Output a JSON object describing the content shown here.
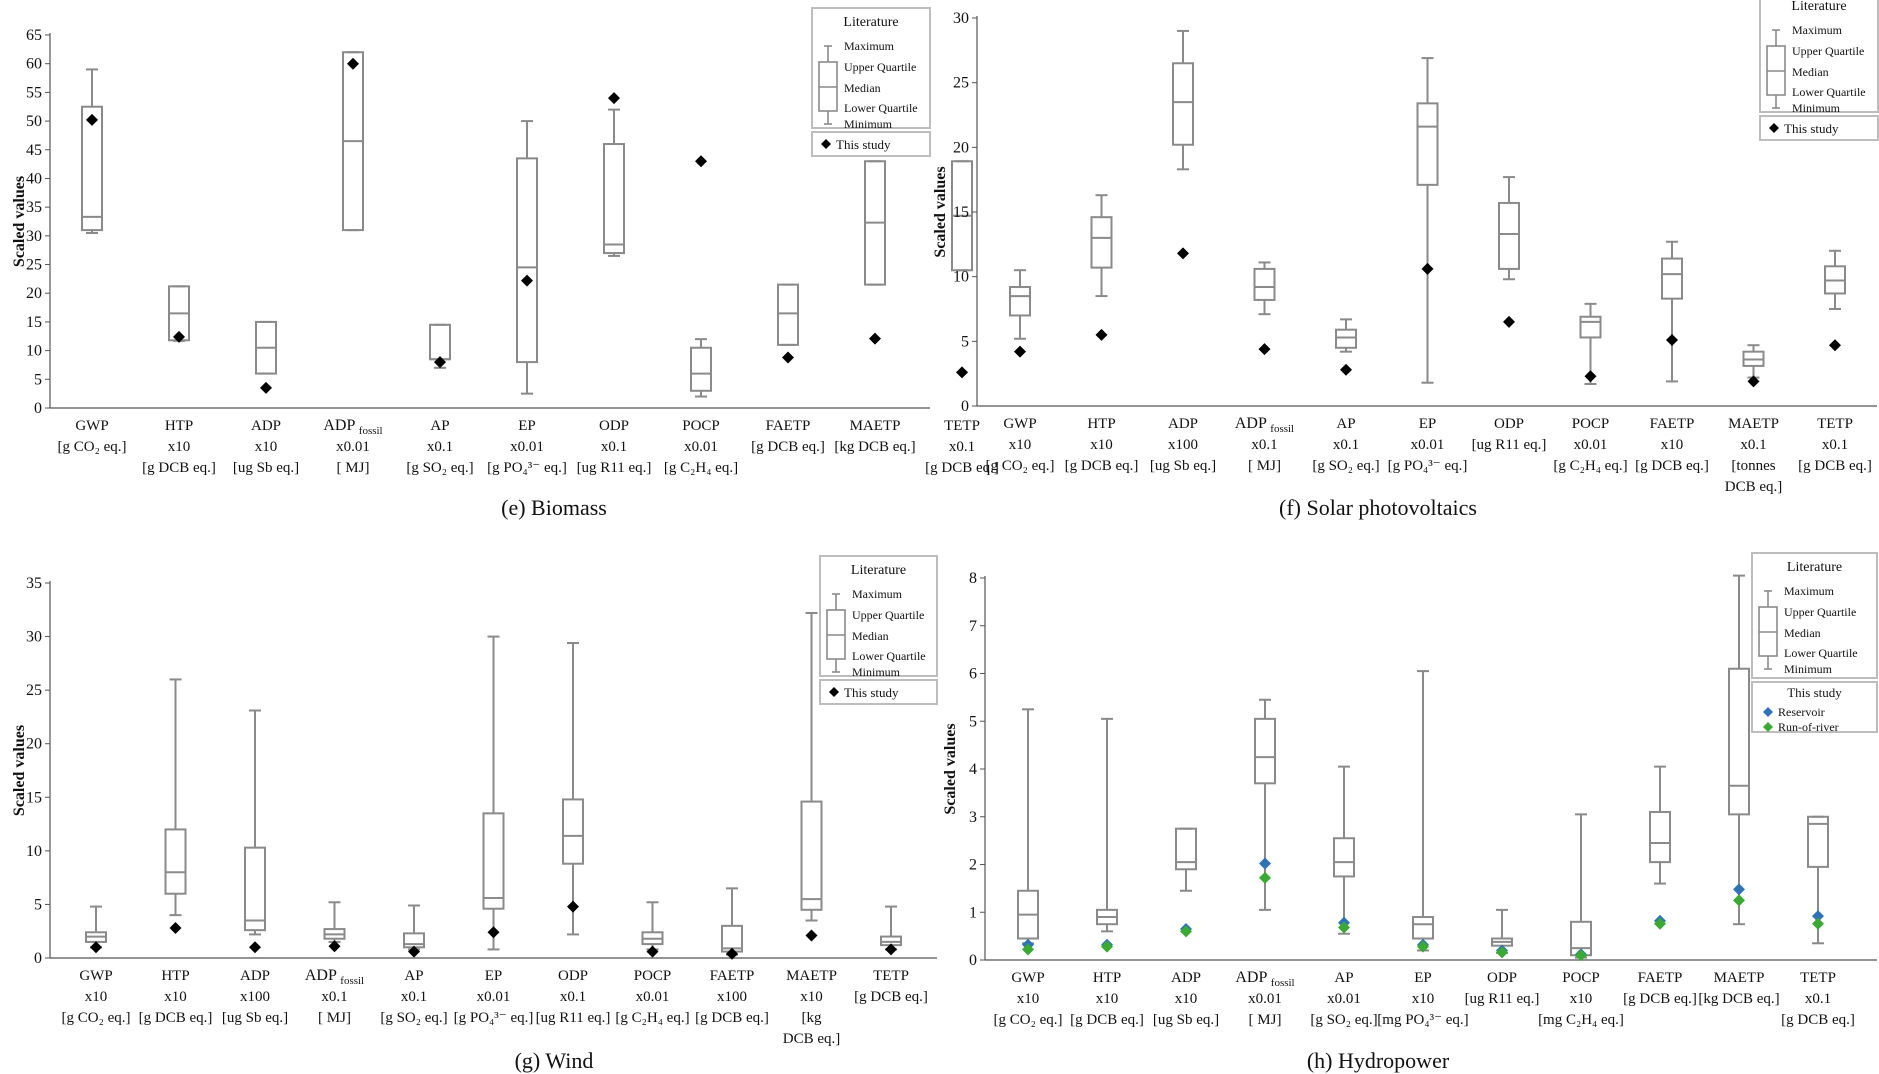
{
  "chart_data": [
    {
      "type": "boxplot",
      "caption": "(e) Biomass",
      "ylabel": "Scaled values",
      "ylim": [
        0,
        65
      ],
      "yticks": [
        0,
        5,
        10,
        15,
        20,
        25,
        30,
        35,
        40,
        45,
        50,
        55,
        60,
        65
      ],
      "legend": {
        "title": "Literature",
        "items": [
          "Maximum",
          "Upper Quartile",
          "Median",
          "Lower Quartile",
          "Minimum"
        ],
        "study_title": "",
        "study_items": [
          {
            "name": "This study",
            "color": "#000000"
          }
        ]
      },
      "categories": [
        {
          "label": [
            "GWP",
            "[g CO₂ eq.]"
          ],
          "min": 30.5,
          "q1": 31,
          "median": 33.3,
          "q3": 52.5,
          "max": 59,
          "study": [
            50.2
          ]
        },
        {
          "label": [
            "HTP",
            "x10",
            "[g DCB eq.]"
          ],
          "min": 11.7,
          "q1": 11.8,
          "median": 16.5,
          "q3": 21.2,
          "max": 21.2,
          "study": [
            12.4
          ]
        },
        {
          "label": [
            "ADP",
            "x10",
            "[ug Sb eq.]"
          ],
          "min": 6,
          "q1": 6,
          "median": 10.5,
          "q3": 15,
          "max": 15,
          "study": [
            3.5
          ]
        },
        {
          "label": [
            "ADP fossil",
            "x0.01",
            "[ MJ]"
          ],
          "min": 31,
          "q1": 31,
          "median": 46.5,
          "q3": 62,
          "max": 62,
          "study": [
            60
          ]
        },
        {
          "label": [
            "AP",
            "x0.1",
            "[g SO₂ eq.]"
          ],
          "min": 7,
          "q1": 8.5,
          "median": 8.5,
          "q3": 14.5,
          "max": 14.5,
          "study": [
            8
          ]
        },
        {
          "label": [
            "EP",
            "x0.01",
            "[g PO₄³⁻ eq.]"
          ],
          "min": 2.5,
          "q1": 8,
          "median": 24.5,
          "q3": 43.5,
          "max": 50,
          "study": [
            22.2
          ]
        },
        {
          "label": [
            "ODP",
            "x0.1",
            "[ug R11 eq.]"
          ],
          "min": 26.5,
          "q1": 27,
          "median": 28.5,
          "q3": 46,
          "max": 52,
          "study": [
            54
          ]
        },
        {
          "label": [
            "POCP",
            "x0.01",
            "[g C₂H₄ eq.]"
          ],
          "min": 2,
          "q1": 3,
          "median": 6,
          "q3": 10.5,
          "max": 12,
          "study": [
            43
          ]
        },
        {
          "label": [
            "FAETP",
            "[g DCB eq.]"
          ],
          "min": 11,
          "q1": 11,
          "median": 16.5,
          "q3": 21.5,
          "max": 21.5,
          "study": [
            8.8
          ]
        },
        {
          "label": [
            "MAETP",
            "[kg DCB eq.]"
          ],
          "min": 21.5,
          "q1": 21.5,
          "median": 32.3,
          "q3": 43,
          "max": 43,
          "study": [
            12.1
          ]
        },
        {
          "label": [
            "TETP",
            "x0.1",
            "[g DCB eq.]"
          ],
          "min": 24,
          "q1": 24,
          "median": 33.5,
          "q3": 43,
          "max": 43,
          "study": [
            6.2
          ]
        }
      ]
    },
    {
      "type": "boxplot",
      "caption": "(f) Solar photovoltaics",
      "ylabel": "Scaled values",
      "ylim": [
        0,
        30
      ],
      "yticks": [
        0,
        5,
        10,
        15,
        20,
        25,
        30
      ],
      "legend": {
        "title": "Literature",
        "items": [
          "Maximum",
          "Upper Quartile",
          "Median",
          "Lower Quartile",
          "Minimum"
        ],
        "study_title": "",
        "study_items": [
          {
            "name": "This study",
            "color": "#000000"
          }
        ]
      },
      "categories": [
        {
          "label": [
            "GWP",
            "x10",
            "[g CO₂ eq.]"
          ],
          "min": 5.2,
          "q1": 7,
          "median": 8.5,
          "q3": 9.2,
          "max": 10.5,
          "study": [
            4.2
          ]
        },
        {
          "label": [
            "HTP",
            "x10",
            "[g DCB eq.]"
          ],
          "min": 8.5,
          "q1": 10.7,
          "median": 13,
          "q3": 14.6,
          "max": 16.3,
          "study": [
            5.5
          ]
        },
        {
          "label": [
            "ADP",
            "x100",
            "[ug Sb eq.]"
          ],
          "min": 18.3,
          "q1": 20.2,
          "median": 23.5,
          "q3": 26.5,
          "max": 29,
          "study": [
            11.8
          ]
        },
        {
          "label": [
            "ADP fossil",
            "x0.1",
            "[ MJ]"
          ],
          "min": 7.1,
          "q1": 8.2,
          "median": 9.2,
          "q3": 10.6,
          "max": 11.1,
          "study": [
            4.4
          ]
        },
        {
          "label": [
            "AP",
            "x0.1",
            "[g SO₂ eq.]"
          ],
          "min": 4.2,
          "q1": 4.5,
          "median": 5.3,
          "q3": 5.9,
          "max": 6.7,
          "study": [
            2.8
          ]
        },
        {
          "label": [
            "EP",
            "x0.01",
            "[g PO₄³⁻ eq.]"
          ],
          "min": 1.8,
          "q1": 17.1,
          "median": 21.6,
          "q3": 23.4,
          "max": 26.9,
          "study": [
            10.6
          ]
        },
        {
          "label": [
            "ODP",
            "[ug R11 eq.]"
          ],
          "min": 9.8,
          "q1": 10.6,
          "median": 13.3,
          "q3": 15.7,
          "max": 17.7,
          "study": [
            6.5
          ]
        },
        {
          "label": [
            "POCP",
            "x0.01",
            "[g C₂H₄ eq.]"
          ],
          "min": 1.7,
          "q1": 5.3,
          "median": 6.5,
          "q3": 6.9,
          "max": 7.9,
          "study": [
            2.3
          ]
        },
        {
          "label": [
            "FAETP",
            "x10",
            "[g DCB eq.]"
          ],
          "min": 1.9,
          "q1": 8.3,
          "median": 10.2,
          "q3": 11.4,
          "max": 12.7,
          "study": [
            5.1
          ]
        },
        {
          "label": [
            "MAETP",
            "x0.1",
            "[tonnes",
            "DCB eq.]"
          ],
          "min": 2.2,
          "q1": 3.1,
          "median": 3.6,
          "q3": 4.2,
          "max": 4.7,
          "study": [
            1.9
          ]
        },
        {
          "label": [
            "TETP",
            "x0.1",
            "[g DCB eq.]"
          ],
          "min": 7.5,
          "q1": 8.7,
          "median": 9.7,
          "q3": 10.8,
          "max": 12,
          "study": [
            4.7
          ]
        }
      ]
    },
    {
      "type": "boxplot",
      "caption": "(g) Wind",
      "ylabel": "Scaled values",
      "ylim": [
        0,
        35
      ],
      "yticks": [
        0,
        5,
        10,
        15,
        20,
        25,
        30,
        35
      ],
      "legend": {
        "title": "Literature",
        "items": [
          "Maximum",
          "Upper Quartile",
          "Median",
          "Lower Quartile",
          "Minimum"
        ],
        "study_title": "",
        "study_items": [
          {
            "name": "This study",
            "color": "#000000"
          }
        ]
      },
      "categories": [
        {
          "label": [
            "GWP",
            "x10",
            "[g CO₂ eq.]"
          ],
          "min": 1,
          "q1": 1.5,
          "median": 2,
          "q3": 2.4,
          "max": 4.8,
          "study": [
            1
          ]
        },
        {
          "label": [
            "HTP",
            "x10",
            "[g DCB eq.]"
          ],
          "min": 4,
          "q1": 6,
          "median": 8,
          "q3": 12,
          "max": 26,
          "study": [
            2.8
          ]
        },
        {
          "label": [
            "ADP",
            "x100",
            "[ug Sb eq.]"
          ],
          "min": 2.2,
          "q1": 2.6,
          "median": 3.5,
          "q3": 10.3,
          "max": 23.1,
          "study": [
            1
          ]
        },
        {
          "label": [
            "ADP fossil",
            "x0.1",
            "[ MJ]"
          ],
          "min": 1.5,
          "q1": 1.8,
          "median": 2.2,
          "q3": 2.7,
          "max": 5.2,
          "study": [
            1.1
          ]
        },
        {
          "label": [
            "AP",
            "x0.1",
            "[g SO₂ eq.]"
          ],
          "min": 0.8,
          "q1": 1,
          "median": 1.3,
          "q3": 2.3,
          "max": 4.9,
          "study": [
            0.6
          ]
        },
        {
          "label": [
            "EP",
            "x0.01",
            "[g PO₄³⁻ eq.]"
          ],
          "min": 0.8,
          "q1": 4.6,
          "median": 5.6,
          "q3": 13.5,
          "max": 30,
          "study": [
            2.4
          ]
        },
        {
          "label": [
            "ODP",
            "x0.1",
            "[ug R11 eq.]"
          ],
          "min": 2.2,
          "q1": 8.8,
          "median": 11.4,
          "q3": 14.8,
          "max": 29.4,
          "study": [
            4.8
          ]
        },
        {
          "label": [
            "POCP",
            "x0.01",
            "[g C₂H₄ eq.]"
          ],
          "min": 0.8,
          "q1": 1.3,
          "median": 1.8,
          "q3": 2.4,
          "max": 5.2,
          "study": [
            0.6
          ]
        },
        {
          "label": [
            "FAETP",
            "x100",
            "[g DCB eq.]"
          ],
          "min": 0.3,
          "q1": 0.6,
          "median": 0.9,
          "q3": 3,
          "max": 6.5,
          "study": [
            0.4
          ]
        },
        {
          "label": [
            "MAETP",
            "x10",
            "[kg",
            "DCB eq.]"
          ],
          "min": 3.5,
          "q1": 4.5,
          "median": 5.5,
          "q3": 14.6,
          "max": 32.2,
          "study": [
            2.1
          ]
        },
        {
          "label": [
            "TETP",
            "[g DCB eq.]"
          ],
          "min": 0.8,
          "q1": 1.2,
          "median": 1.5,
          "q3": 2,
          "max": 4.8,
          "study": [
            0.8
          ]
        }
      ]
    },
    {
      "type": "boxplot",
      "caption": "(h) Hydropower",
      "ylabel": "Scaled values",
      "ylim": [
        0,
        8
      ],
      "yticks": [
        0,
        1,
        2,
        3,
        4,
        5,
        6,
        7,
        8
      ],
      "legend": {
        "title": "Literature",
        "items": [
          "Maximum",
          "Upper Quartile",
          "Median",
          "Lower Quartile",
          "Minimum"
        ],
        "study_title": "This study",
        "study_items": [
          {
            "name": "Reservoir",
            "color": "#2e74b5"
          },
          {
            "name": "Run-of-river",
            "color": "#3aaa35"
          }
        ]
      },
      "categories": [
        {
          "label": [
            "GWP",
            "x10",
            "[g CO₂ eq.]"
          ],
          "min": 0.35,
          "q1": 0.45,
          "median": 0.95,
          "q3": 1.45,
          "max": 5.25,
          "study": [
            0.32,
            0.22
          ]
        },
        {
          "label": [
            "HTP",
            "x10",
            "[g DCB eq.]"
          ],
          "min": 0.6,
          "q1": 0.75,
          "median": 0.9,
          "q3": 1.05,
          "max": 5.05,
          "study": [
            0.32,
            0.28
          ]
        },
        {
          "label": [
            "ADP",
            "x10",
            "[ug Sb eq.]"
          ],
          "min": 1.45,
          "q1": 1.9,
          "median": 2.05,
          "q3": 2.75,
          "max": 2.75,
          "study": [
            0.65,
            0.6
          ]
        },
        {
          "label": [
            "ADP fossil",
            "x0.01",
            "[ MJ]"
          ],
          "min": 1.05,
          "q1": 3.7,
          "median": 4.25,
          "q3": 5.05,
          "max": 5.45,
          "study": [
            2.02,
            1.72
          ]
        },
        {
          "label": [
            "AP",
            "x0.01",
            "[g SO₂ eq.]"
          ],
          "min": 0.55,
          "q1": 1.75,
          "median": 2.05,
          "q3": 2.55,
          "max": 4.05,
          "study": [
            0.78,
            0.68
          ]
        },
        {
          "label": [
            "EP",
            "x10",
            "[mg PO₄³⁻ eq.]"
          ],
          "min": 0.2,
          "q1": 0.45,
          "median": 0.75,
          "q3": 0.9,
          "max": 6.05,
          "study": [
            0.32,
            0.28
          ]
        },
        {
          "label": [
            "ODP",
            "[ug R11 eq.]"
          ],
          "min": 0.15,
          "q1": 0.3,
          "median": 0.38,
          "q3": 0.45,
          "max": 1.05,
          "study": [
            0.2,
            0.16
          ]
        },
        {
          "label": [
            "POCP",
            "x10",
            "[mg C₂H₄ eq.]"
          ],
          "min": 0.05,
          "q1": 0.1,
          "median": 0.25,
          "q3": 0.8,
          "max": 3.05,
          "study": [
            0.12,
            0.1
          ]
        },
        {
          "label": [
            "FAETP",
            "[g DCB eq.]"
          ],
          "min": 1.6,
          "q1": 2.05,
          "median": 2.45,
          "q3": 3.1,
          "max": 4.05,
          "study": [
            0.82,
            0.76
          ]
        },
        {
          "label": [
            "MAETP",
            "[kg DCB eq.]"
          ],
          "min": 0.75,
          "q1": 3.05,
          "median": 3.65,
          "q3": 6.1,
          "max": 8.05,
          "study": [
            1.48,
            1.25
          ]
        },
        {
          "label": [
            "TETP",
            "x0.1",
            "[g DCB eq.]"
          ],
          "min": 0.35,
          "q1": 1.95,
          "median": 2.85,
          "q3": 3.0,
          "max": 3.0,
          "study": [
            0.92,
            0.76
          ]
        }
      ]
    }
  ]
}
